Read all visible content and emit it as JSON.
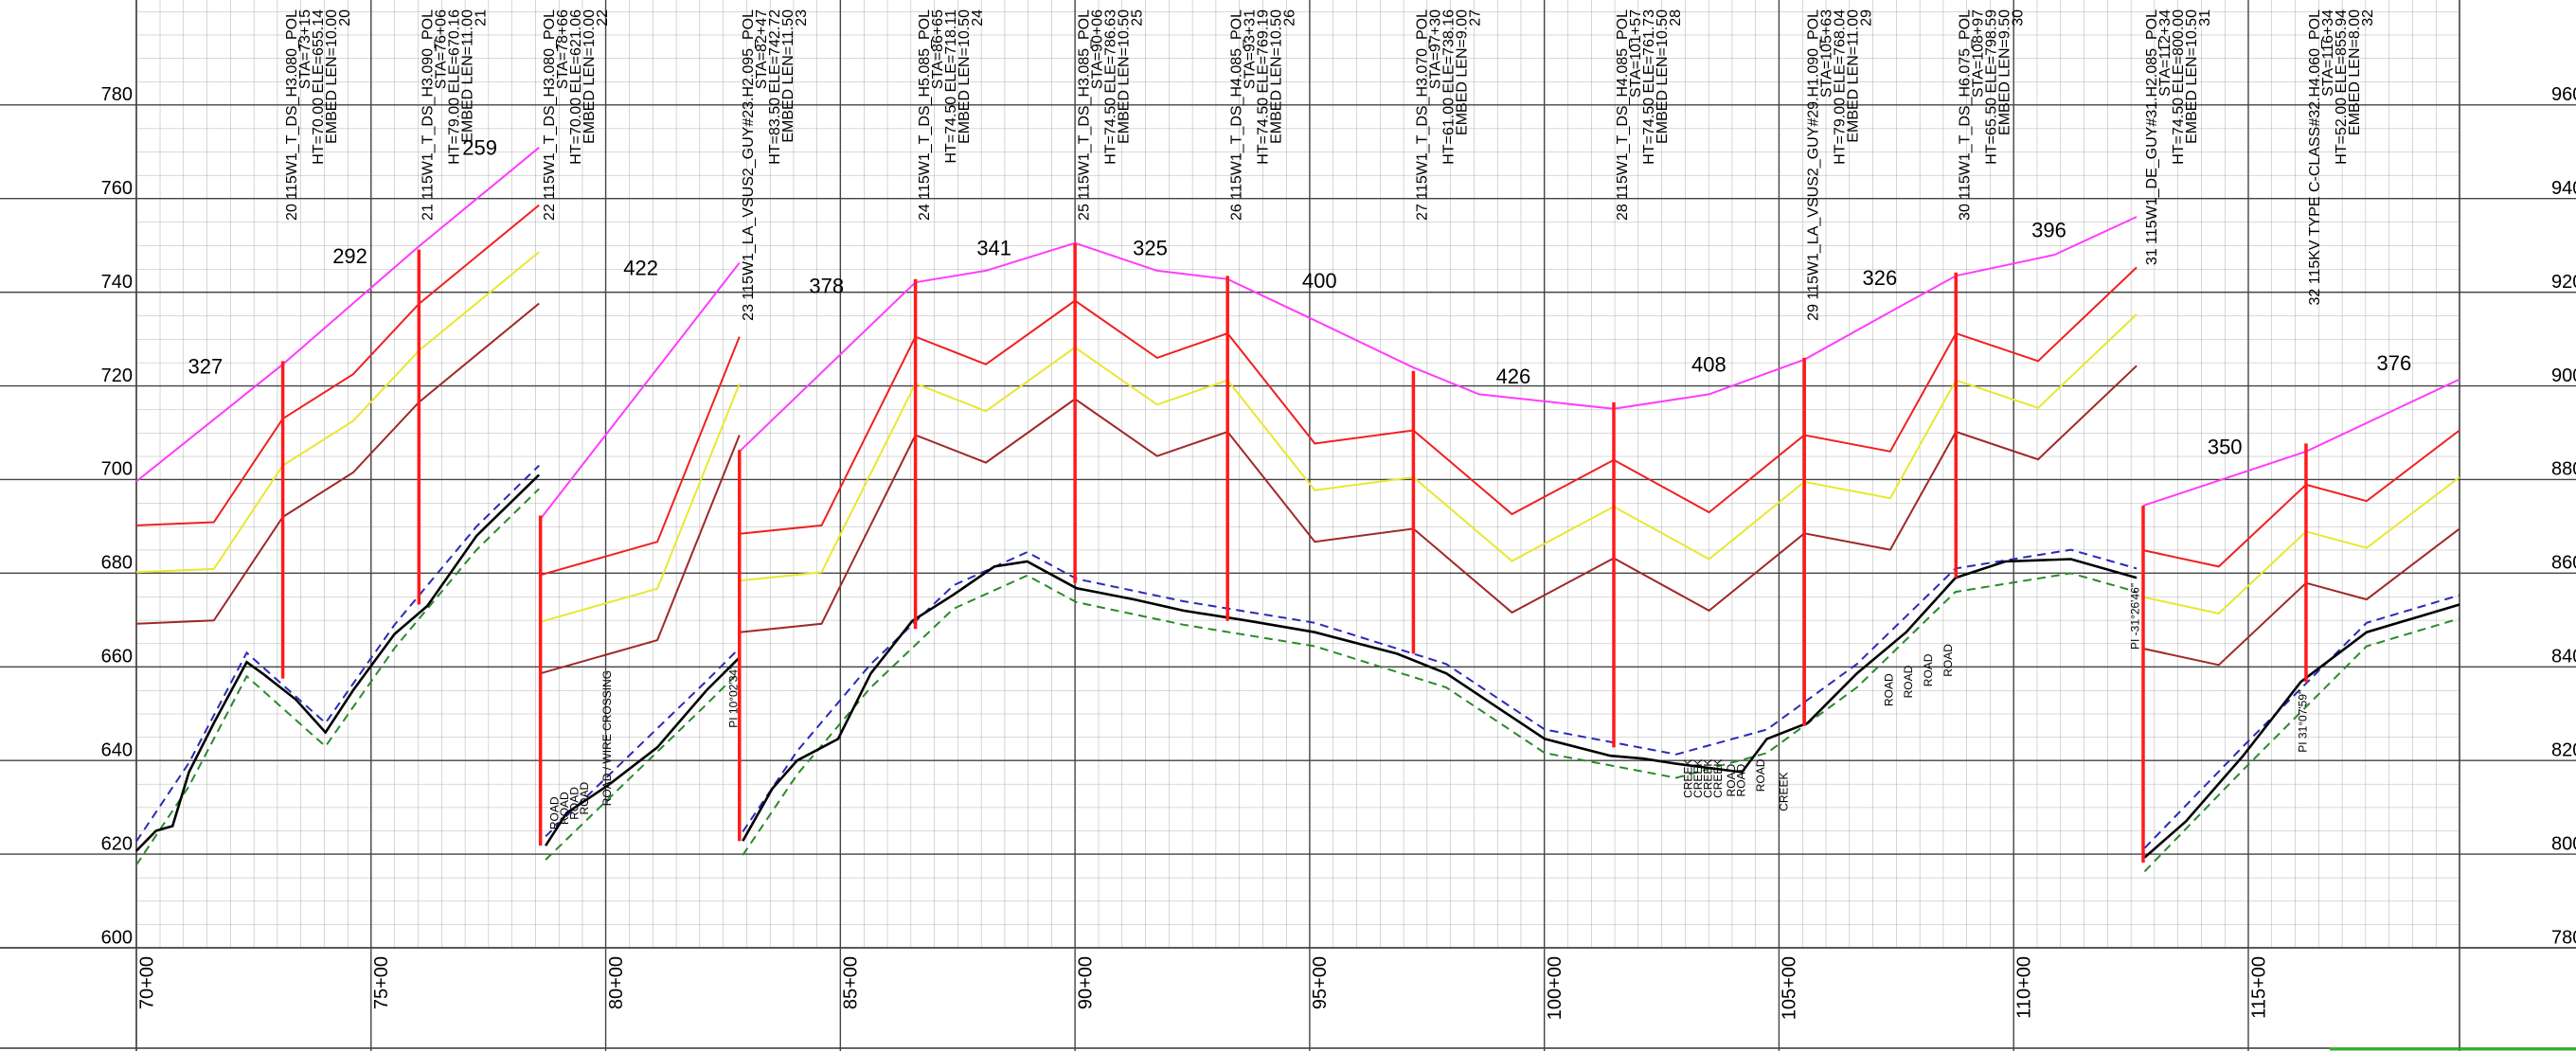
{
  "chart_data": {
    "type": "line",
    "xlim": [
      7000,
      11950
    ],
    "ylim": [
      600,
      802
    ],
    "y2lim": [
      780,
      982
    ],
    "xticks": [
      {
        "value": 7000,
        "label": "70+00"
      },
      {
        "value": 7500,
        "label": "75+00"
      },
      {
        "value": 8000,
        "label": "80+00"
      },
      {
        "value": 8500,
        "label": "85+00"
      },
      {
        "value": 9000,
        "label": "90+00"
      },
      {
        "value": 9500,
        "label": "95+00"
      },
      {
        "value": 10000,
        "label": "100+00"
      },
      {
        "value": 10500,
        "label": "105+00"
      },
      {
        "value": 11000,
        "label": "110+00"
      },
      {
        "value": 11500,
        "label": "115+00"
      }
    ],
    "yticks": [
      600,
      620,
      640,
      660,
      680,
      700,
      720,
      740,
      760,
      780
    ],
    "y2ticks": [
      780,
      800,
      820,
      840,
      860,
      880,
      900,
      920,
      940,
      960
    ],
    "grid": true,
    "series": [
      {
        "color": "#ff3cff",
        "dashed": false,
        "x": [
          7000,
          7312,
          7602,
          7858,
          null,
          7861,
          8285,
          null,
          8285,
          8660,
          8810,
          9000,
          9175,
          9325,
          9511,
          9721,
          9861,
          10148,
          10351,
          10554,
          10737,
          10877,
          11087,
          11262,
          null,
          11276,
          11623,
          11950
        ],
        "values": [
          699.6,
          724.6,
          749.8,
          770.9,
          null,
          691.6,
          746.3,
          null,
          706,
          742.1,
          744.6,
          750.5,
          744.6,
          742.8,
          734,
          723.9,
          718.2,
          715.1,
          718.2,
          725.6,
          735.8,
          743.5,
          748,
          756.1,
          null,
          694.4,
          706,
          721.4
        ]
      },
      {
        "color": "#f02020",
        "dashed": false,
        "x": [
          7000,
          7165,
          7312,
          7462,
          7602,
          7858,
          null,
          7861,
          8110,
          8285,
          null,
          8285,
          8460,
          8660,
          8810,
          9000,
          9175,
          9325,
          9511,
          9721,
          9931,
          10148,
          10351,
          10554,
          10737,
          10877,
          11052,
          11262,
          null,
          11276,
          11437,
          11623,
          11752,
          11950
        ],
        "values": [
          690.2,
          690.9,
          713,
          722.5,
          737.5,
          758.6,
          null,
          679.6,
          686.7,
          730.5,
          null,
          688.4,
          690.2,
          730.5,
          724.6,
          738.2,
          726,
          731.2,
          707.7,
          710.5,
          692.6,
          704.2,
          693,
          709.5,
          706,
          731.2,
          725.3,
          745.3,
          null,
          684.9,
          681.4,
          698.9,
          695.4,
          710.5
        ]
      },
      {
        "color": "#e8e830",
        "dashed": false,
        "x": [
          7000,
          7165,
          7312,
          7462,
          7602,
          7858,
          null,
          7861,
          8110,
          8285,
          null,
          8285,
          8460,
          8660,
          8810,
          9000,
          9175,
          9325,
          9511,
          9721,
          9931,
          10148,
          10351,
          10554,
          10737,
          10877,
          11052,
          11262,
          null,
          11276,
          11437,
          11623,
          11752,
          11950
        ],
        "values": [
          680.2,
          680.9,
          703,
          712.5,
          727.5,
          748.6,
          null,
          669.6,
          676.7,
          720.5,
          null,
          678.4,
          680.2,
          720.5,
          714.6,
          728.2,
          716,
          721.2,
          697.7,
          700.5,
          682.6,
          694.2,
          683,
          699.5,
          696,
          721.2,
          715.3,
          735.3,
          null,
          674.9,
          671.4,
          688.9,
          685.4,
          700.5
        ]
      },
      {
        "color": "#a02828",
        "dashed": false,
        "x": [
          7000,
          7165,
          7312,
          7462,
          7602,
          7858,
          null,
          7861,
          8110,
          8285,
          null,
          8285,
          8460,
          8660,
          8810,
          9000,
          9175,
          9325,
          9511,
          9721,
          9931,
          10148,
          10351,
          10554,
          10737,
          10877,
          11052,
          11262,
          null,
          11276,
          11437,
          11623,
          11752,
          11950
        ],
        "values": [
          669.2,
          669.9,
          692,
          701.5,
          716.5,
          737.6,
          null,
          658.6,
          665.7,
          709.5,
          null,
          667.4,
          669.2,
          709.5,
          703.6,
          717.2,
          705,
          710.2,
          686.7,
          689.5,
          671.6,
          683.2,
          672,
          688.5,
          685,
          710.2,
          704.3,
          724.3,
          null,
          663.9,
          660.4,
          677.9,
          674.4,
          689.5
        ]
      },
      {
        "color": "#2a2ab8",
        "dashed": true,
        "x": [
          7000,
          7112,
          7235,
          7403,
          7550,
          7725,
          7858,
          null,
          7872,
          8005,
          8215,
          8285,
          null,
          8292,
          8408,
          8565,
          8741,
          8898,
          9003,
          9231,
          9511,
          9791,
          10001,
          10281,
          10474,
          10666,
          10876,
          11122,
          11262,
          null,
          11279,
          11489,
          11752,
          11950
        ],
        "values": [
          622.7,
          639.5,
          663,
          648,
          669,
          690,
          703,
          null,
          623.8,
          636.7,
          657,
          664,
          null,
          624.8,
          642,
          660.6,
          677.4,
          684.5,
          678.8,
          674,
          669.4,
          660.6,
          646.6,
          641.3,
          646.6,
          660.6,
          681,
          685,
          681,
          null,
          621.3,
          643,
          669.4,
          675.3
        ]
      },
      {
        "color": "#2a8a2a",
        "dashed": true,
        "x": [
          7000,
          7112,
          7235,
          7403,
          7550,
          7725,
          7858,
          null,
          7872,
          8005,
          8215,
          8285,
          null,
          8292,
          8408,
          8565,
          8741,
          8898,
          9003,
          9231,
          9511,
          9791,
          10001,
          10281,
          10474,
          10666,
          10876,
          11122,
          11262,
          null,
          11279,
          11489,
          11752,
          11950
        ],
        "values": [
          617.7,
          634.5,
          658,
          643,
          664,
          685,
          698,
          null,
          618.8,
          631.7,
          652,
          659,
          null,
          619.8,
          637,
          655.6,
          672.4,
          679.5,
          673.8,
          669,
          664.4,
          655.6,
          641.6,
          636.3,
          641.6,
          655.6,
          676,
          680,
          676,
          null,
          616.3,
          638,
          664.4,
          670.3
        ]
      },
      {
        "color": "#000000",
        "dashed": false,
        "x": [
          7000,
          7042,
          7077,
          7112,
          7165,
          7235,
          7270,
          7340,
          7403,
          7462,
          7550,
          7620,
          7725,
          7858,
          null,
          7872,
          7917,
          8005,
          8110,
          8215,
          8285,
          null,
          8292,
          8355,
          8408,
          8495,
          8565,
          8653,
          8741,
          8828,
          8898,
          9003,
          9126,
          9231,
          9371,
          9511,
          9686,
          9791,
          9896,
          10001,
          10141,
          10211,
          10281,
          10421,
          10474,
          10561,
          10666,
          10771,
          10876,
          10982,
          11122,
          11262,
          null,
          11279,
          11367,
          11489,
          11612,
          11752,
          11950
        ],
        "values": [
          620.7,
          625,
          626,
          637.5,
          648,
          661,
          658.5,
          653,
          646,
          655,
          667,
          673,
          688,
          701,
          null,
          621.8,
          628.8,
          634.7,
          642.8,
          655,
          662,
          null,
          622.8,
          634,
          640,
          644.6,
          658.6,
          669.8,
          675.4,
          681.4,
          682.5,
          676.8,
          674.4,
          672,
          669.8,
          667.4,
          662.8,
          658.6,
          651.6,
          644.6,
          641,
          640.4,
          639.3,
          637.5,
          644.6,
          648,
          658.6,
          667.4,
          679,
          682.5,
          683,
          679,
          null,
          619.3,
          627,
          641,
          656.8,
          667.4,
          673.3
        ]
      }
    ],
    "structures": {
      "color": "#ff1a1a",
      "x": [
        7312,
        7602,
        7861,
        8285,
        8660,
        9000,
        9325,
        9721,
        10148,
        10554,
        10877,
        11276,
        11623
      ],
      "top": [
        725.3,
        749.1,
        692.3,
        706.3,
        742.8,
        750.5,
        743.5,
        723.2,
        716.5,
        726,
        744.2,
        694.4,
        707.7
      ],
      "bottom": [
        657.5,
        673.3,
        621.8,
        622.8,
        668.1,
        677.9,
        669.8,
        662.8,
        642.8,
        647.4,
        679,
        618.2,
        656.8
      ],
      "labels": [
        [
          "20 115W1_T_DS_H3.080_POL",
          "STA=73+15",
          "HT=70.00 ELE=655.14",
          "EMBED LEN=10.00",
          "20"
        ],
        [
          "21 115W1_T_DS_H3.090_POL",
          "STA=76+06",
          "HT=79.00 ELE=670.16",
          "EMBED LEN=11.00",
          "21"
        ],
        [
          "22 115W1_T_DS_H3.080_POL",
          "STA=78+66",
          "HT=70.00 ELE=621.06",
          "EMBED LEN=10.00",
          "22"
        ],
        [
          "23 115W1_LA_VSUS2_GUY#23.H2.095_POL",
          "STA=82+47",
          "HT=83.50 ELE=742.72",
          "EMBED LEN=11.50",
          "23"
        ],
        [
          "24 115W1_T_DS_H5.085_POL",
          "STA=86+65",
          "HT=74.50 ELE=718.11",
          "EMBED LEN=10.50",
          "24"
        ],
        [
          "25 115W1_T_DS_H3.085_POL",
          "STA=90+06",
          "HT=74.50 ELE=786.63",
          "EMBED LEN=10.50",
          "25"
        ],
        [
          "26 115W1_T_DS_H4.085_POL",
          "STA=93+31",
          "HT=74.50 ELE=769.19",
          "EMBED LEN=10.50",
          "26"
        ],
        [
          "27 115W1_T_DS_H3.070_POL",
          "STA=97+30",
          "HT=61.00 ELE=738.16",
          "EMBED LEN=9.00",
          "27"
        ],
        [
          "28 115W1_T_DS_H4.085_POL",
          "STA=101+57",
          "HT=74.50 ELE=761.73",
          "EMBED LEN=10.50",
          "28"
        ],
        [
          "29 115W1_LA_VSUS2_GUY#29.H1.090_POL",
          "STA=105+63",
          "HT=79.00 ELE=768.04",
          "EMBED LEN=11.00",
          "29"
        ],
        [
          "30 115W1_T_DS_H6.075_POL",
          "STA=108+97",
          "HT=65.50 ELE=798.59",
          "EMBED LEN=9.50",
          "30"
        ],
        [
          "31 115W1_DE_GUY#31.H2.085_POL",
          "STA=112+34",
          "HT=74.50 ELE=800.00",
          "EMBED LEN=10.50",
          "31"
        ],
        [
          "32 115KV TYPE C-CLASS#32.H4.060_POL",
          "STA=116+34",
          "HT=52.00 ELE=855.94",
          "EMBED LEN=8.00",
          "32"
        ]
      ]
    },
    "spans": [
      327,
      292,
      259,
      422,
      378,
      341,
      325,
      400,
      426,
      408,
      326,
      396,
      350,
      376
    ],
    "annotations": [
      "ROAD",
      "ROAD",
      "ROAD",
      "ROAD",
      "ROAD / WIRE CROSSING",
      "PI 10°02'34\"",
      "CREEK",
      "CREEK",
      "CREEK",
      "CREEK",
      "ROAD",
      "ROAD",
      "ROAD",
      "CREEK",
      "ROAD",
      "ROAD",
      "ROAD",
      "ROAD",
      "PI -31°26'46\"",
      "PI 31°07'59\""
    ]
  }
}
